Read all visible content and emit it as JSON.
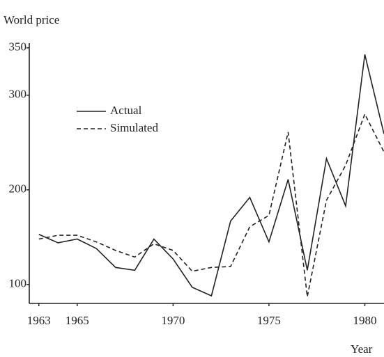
{
  "chart_data": {
    "type": "line",
    "ylabel": "World price",
    "xlabel": "Year",
    "x": [
      1963,
      1964,
      1965,
      1966,
      1967,
      1968,
      1969,
      1970,
      1971,
      1972,
      1973,
      1974,
      1975,
      1976,
      1977,
      1978,
      1979,
      1980,
      1981
    ],
    "series": [
      {
        "name": "Actual",
        "color": "#222222",
        "dashed": false,
        "values": [
          153,
          144,
          148,
          138,
          118,
          115,
          148,
          127,
          97,
          88,
          167,
          192,
          145,
          211,
          115,
          233,
          183,
          343,
          259
        ]
      },
      {
        "name": "Simulated",
        "color": "#222222",
        "dashed": true,
        "values": [
          148,
          152,
          152,
          145,
          136,
          129,
          143,
          136,
          114,
          118,
          119,
          161,
          173,
          261,
          87,
          189,
          226,
          280,
          240
        ]
      }
    ],
    "xlim": [
      1962.5,
      1981
    ],
    "ylim": [
      80,
      355
    ],
    "xticks": [
      1963,
      1965,
      1970,
      1975,
      1980
    ],
    "yticks": [
      100,
      200,
      300,
      350
    ],
    "grid": false,
    "legend": "upper left"
  }
}
